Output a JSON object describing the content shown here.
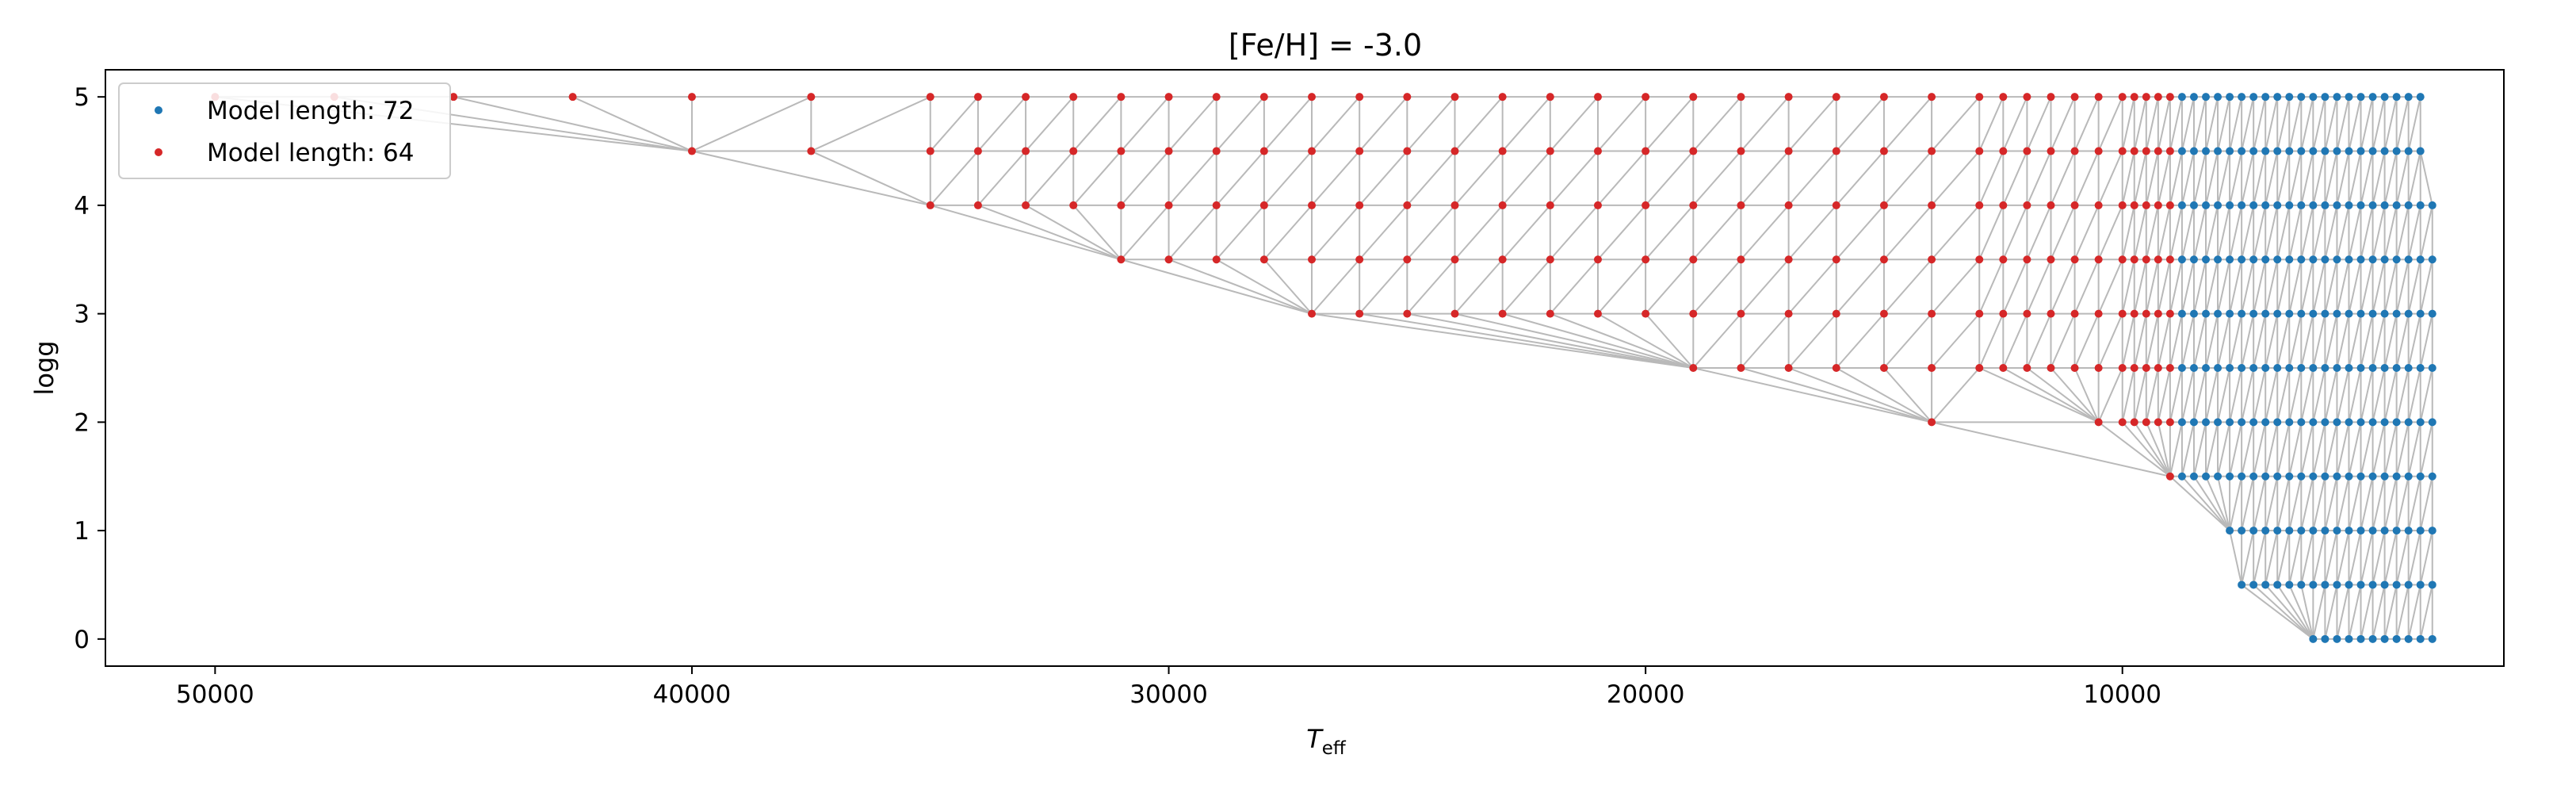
{
  "chart_data": {
    "type": "scatter",
    "title": "[Fe/H] = -3.0",
    "xlabel_main": "T",
    "xlabel_sub": "eff",
    "ylabel": "logg",
    "xlim": [
      52300,
      2000
    ],
    "ylim": [
      5.25,
      -0.25
    ],
    "x_ticks": [
      50000,
      40000,
      30000,
      20000,
      10000
    ],
    "y_ticks": [
      0,
      1,
      2,
      3,
      4,
      5
    ],
    "grid": false,
    "legend_position": "upper-left",
    "colors": {
      "model_72": "#1f77b4",
      "model_64": "#d62728",
      "mesh": "#b9b9b9",
      "axes": "#000000"
    },
    "series": [
      {
        "name": "Model length: 72",
        "color": "#1f77b4",
        "rows": [
          {
            "logg": 0.0,
            "teff_start": 6000,
            "teff_end": 3500
          },
          {
            "logg": 0.5,
            "teff_start": 7500,
            "teff_end": 3500
          },
          {
            "logg": 1.0,
            "teff_start": 7750,
            "teff_end": 3500
          },
          {
            "logg": 1.5,
            "teff_start": 8750,
            "teff_end": 3500
          },
          {
            "logg": 2.0,
            "teff_start": 8750,
            "teff_end": 3500
          },
          {
            "logg": 2.5,
            "teff_start": 8750,
            "teff_end": 3500
          },
          {
            "logg": 3.0,
            "teff_start": 8750,
            "teff_end": 3500
          },
          {
            "logg": 3.5,
            "teff_start": 8750,
            "teff_end": 3500
          },
          {
            "logg": 4.0,
            "teff_start": 8750,
            "teff_end": 3500
          },
          {
            "logg": 4.5,
            "teff_start": 8750,
            "teff_end": 3750
          },
          {
            "logg": 5.0,
            "teff_start": 8750,
            "teff_end": 3750
          }
        ]
      },
      {
        "name": "Model length: 64",
        "color": "#d62728",
        "rows": [
          {
            "logg": 1.5,
            "teff": [
              9000
            ]
          },
          {
            "logg": 2.0,
            "teff": [
              14000,
              10500,
              10000,
              9750,
              9500,
              9250,
              9000
            ]
          },
          {
            "logg": 2.5,
            "teff": [
              19000,
              18000,
              17000,
              16000,
              15000,
              14000,
              13000,
              12500,
              12000,
              11500,
              11000,
              10500,
              10000,
              9750,
              9500,
              9250,
              9000
            ]
          },
          {
            "logg": 3.0,
            "teff": [
              27000,
              26000,
              25000,
              24000,
              23000,
              22000,
              21000,
              20000,
              19000,
              18000,
              17000,
              16000,
              15000,
              14000,
              13000,
              12500,
              12000,
              11500,
              11000,
              10500,
              10000,
              9750,
              9500,
              9250,
              9000
            ]
          },
          {
            "logg": 3.5,
            "teff": [
              31000,
              30000,
              29000,
              28000,
              27000,
              26000,
              25000,
              24000,
              23000,
              22000,
              21000,
              20000,
              19000,
              18000,
              17000,
              16000,
              15000,
              14000,
              13000,
              12500,
              12000,
              11500,
              11000,
              10500,
              10000,
              9750,
              9500,
              9250,
              9000
            ]
          },
          {
            "logg": 4.0,
            "teff": [
              35000,
              34000,
              33000,
              32000,
              31000,
              30000,
              29000,
              28000,
              27000,
              26000,
              25000,
              24000,
              23000,
              22000,
              21000,
              20000,
              19000,
              18000,
              17000,
              16000,
              15000,
              14000,
              13000,
              12500,
              12000,
              11500,
              11000,
              10500,
              10000,
              9750,
              9500,
              9250,
              9000
            ]
          },
          {
            "logg": 4.5,
            "teff": [
              40000,
              37500,
              35000,
              34000,
              33000,
              32000,
              31000,
              30000,
              29000,
              28000,
              27000,
              26000,
              25000,
              24000,
              23000,
              22000,
              21000,
              20000,
              19000,
              18000,
              17000,
              16000,
              15000,
              14000,
              13000,
              12500,
              12000,
              11500,
              11000,
              10500,
              10000,
              9750,
              9500,
              9250,
              9000
            ]
          },
          {
            "logg": 5.0,
            "teff": [
              50000,
              47500,
              45000,
              42500,
              40000,
              37500,
              35000,
              34000,
              33000,
              32000,
              31000,
              30000,
              29000,
              28000,
              27000,
              26000,
              25000,
              24000,
              23000,
              22000,
              21000,
              20000,
              19000,
              18000,
              17000,
              16000,
              15000,
              14000,
              13000,
              12500,
              12000,
              11500,
              11000,
              10500,
              10000,
              9750,
              9500,
              9250,
              9000
            ]
          }
        ]
      }
    ]
  }
}
